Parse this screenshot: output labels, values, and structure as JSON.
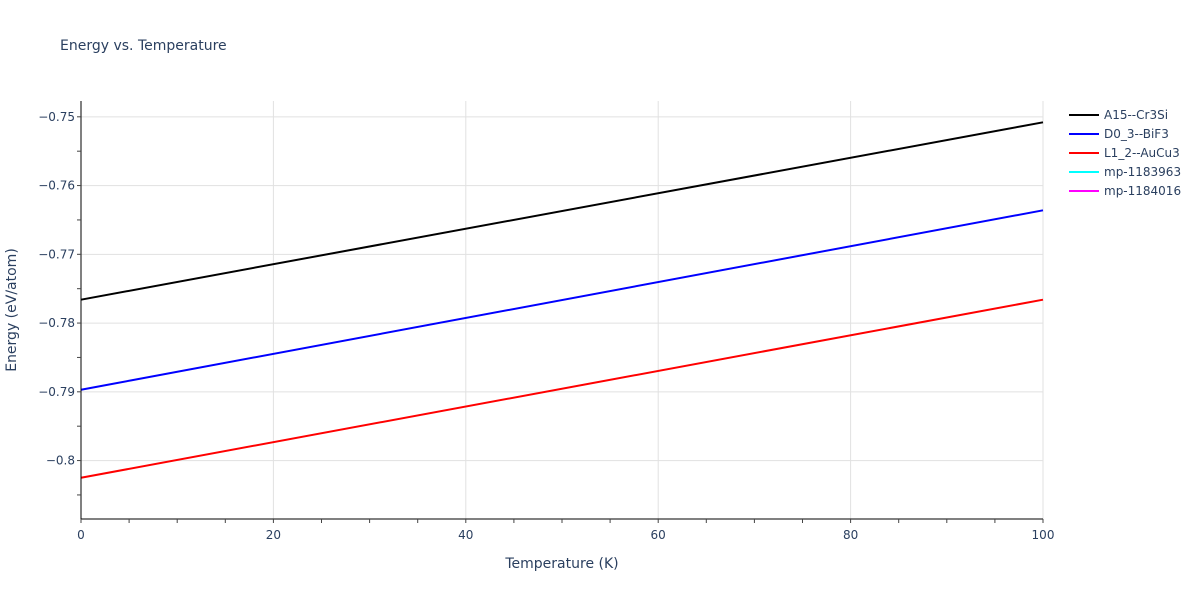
{
  "chart_data": {
    "type": "line",
    "title": "Energy vs. Temperature",
    "xlabel": "Temperature (K)",
    "ylabel": "Energy (eV/atom)",
    "xlim": [
      0,
      100
    ],
    "ylim": [
      -0.8085,
      -0.7477
    ],
    "x_ticks": [
      0,
      20,
      40,
      60,
      80,
      100
    ],
    "x_tick_labels": [
      "0",
      "20",
      "40",
      "60",
      "80",
      "100"
    ],
    "y_ticks": [
      -0.75,
      -0.76,
      -0.77,
      -0.78,
      -0.79,
      -0.8
    ],
    "y_tick_labels": [
      "−0.75",
      "−0.76",
      "−0.77",
      "−0.78",
      "−0.79",
      "−0.8"
    ],
    "grid": true,
    "legend_position": "right",
    "series": [
      {
        "name": "A15--Cr3Si",
        "color": "#000000",
        "x": [
          0,
          100
        ],
        "y": [
          -0.7766,
          -0.7508
        ]
      },
      {
        "name": "D0_3--BiF3",
        "color": "#0000ff",
        "x": [
          0,
          100
        ],
        "y": [
          -0.7897,
          -0.7636
        ]
      },
      {
        "name": "L1_2--AuCu3",
        "color": "#ff0000",
        "x": [
          0,
          100
        ],
        "y": [
          -0.8025,
          -0.7766
        ]
      },
      {
        "name": "mp-1183963",
        "color": "#00ffff",
        "x": [],
        "y": []
      },
      {
        "name": "mp-1184016",
        "color": "#ff00ff",
        "x": [],
        "y": []
      }
    ]
  }
}
